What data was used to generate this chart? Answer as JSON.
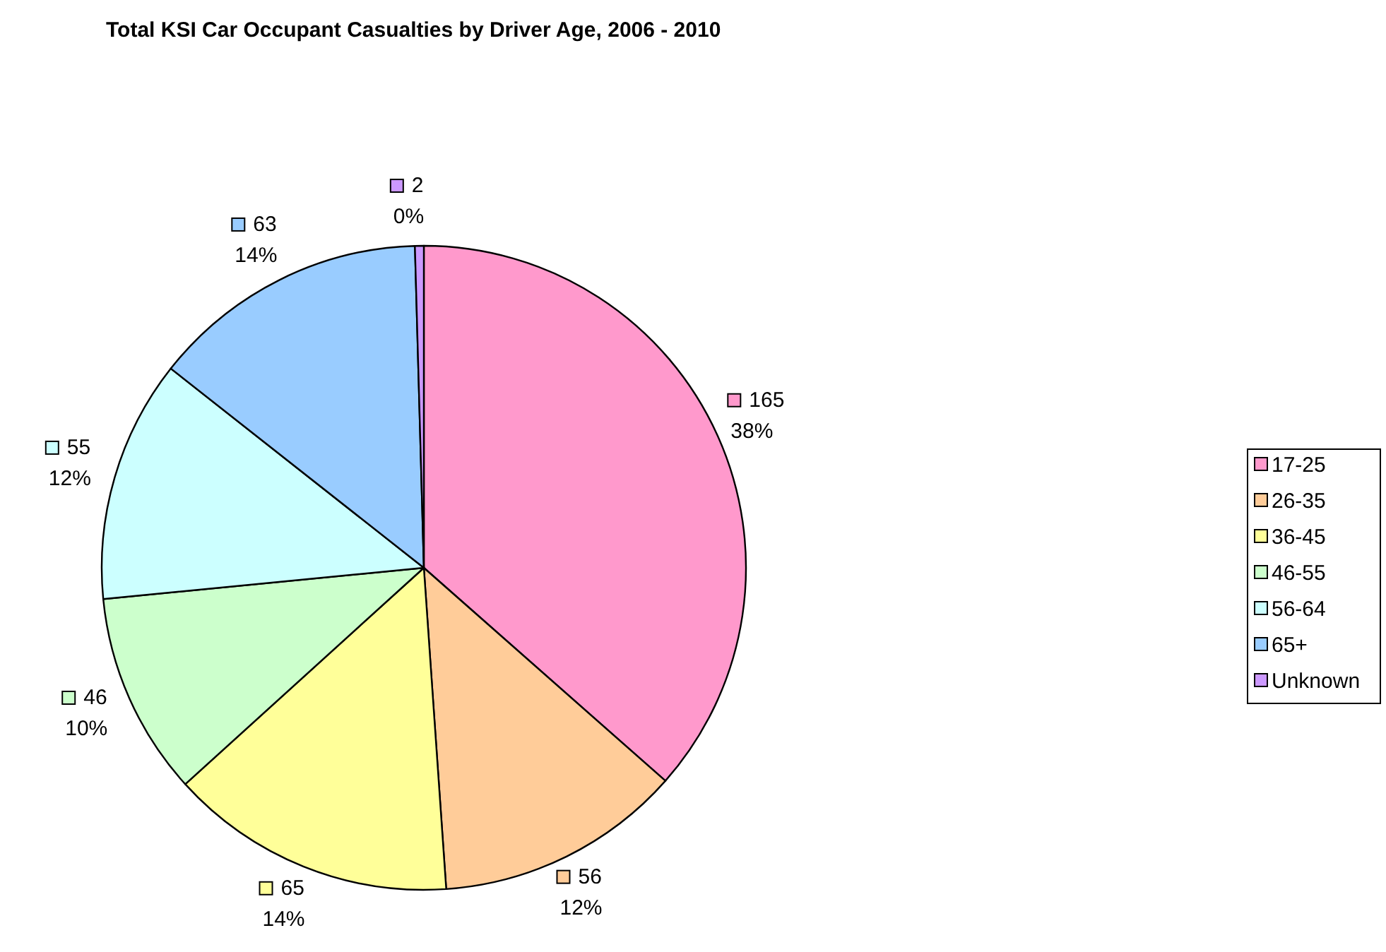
{
  "chart_data": {
    "type": "pie",
    "title": "Total KSI Car Occupant Casualties by Driver Age, 2006 - 2010",
    "categories": [
      "17-25",
      "26-35",
      "36-45",
      "46-55",
      "56-64",
      "65+",
      "Unknown"
    ],
    "values": [
      165,
      56,
      65,
      46,
      55,
      63,
      2
    ],
    "colors": [
      "#ff99cc",
      "#ffcc99",
      "#ffff99",
      "#ccffcc",
      "#ccffff",
      "#99ccff",
      "#cc99ff"
    ],
    "value_labels": [
      "165\n38%",
      "56\n12%",
      "65\n14%",
      "46\n10%",
      "55\n12%",
      "63\n14%",
      "2\n0%"
    ],
    "legend": "right"
  }
}
